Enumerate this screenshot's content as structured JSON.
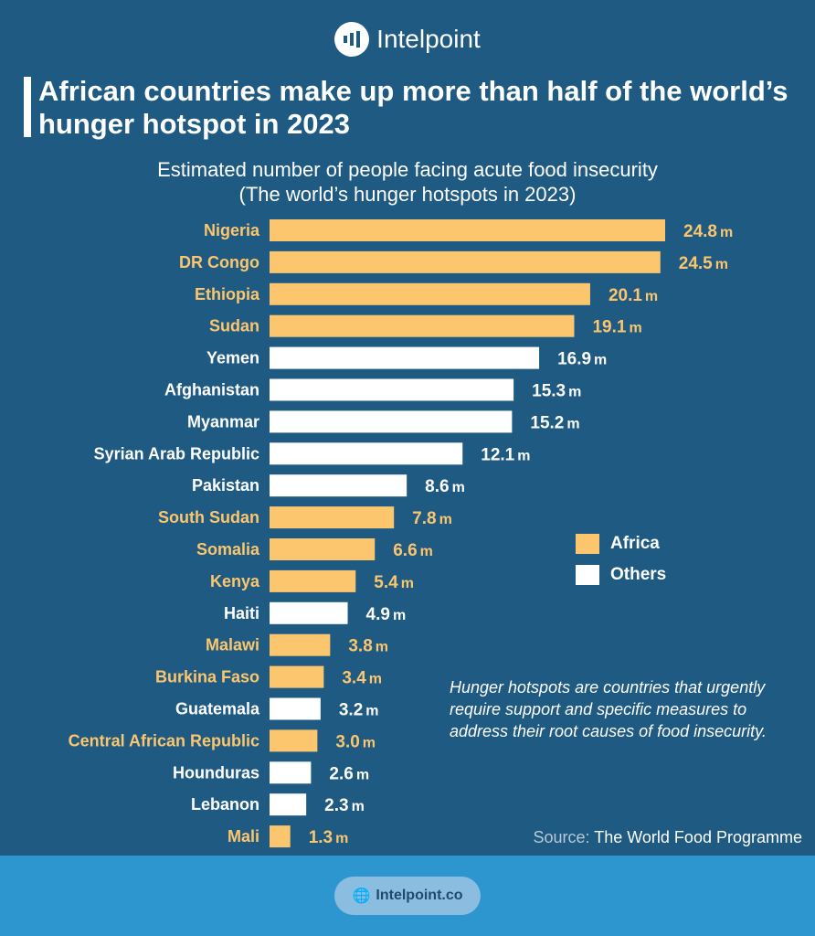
{
  "brand": {
    "name": "Intelpoint",
    "website": "Intelpoint.co"
  },
  "headline": "African countries make up more than half of the world’s hunger hotspot in 2023",
  "colors": {
    "africa": "#fbc66e",
    "others": "#ffffff",
    "background": "#1e5a82",
    "footer": "#2e96cf"
  },
  "chart_data": {
    "type": "bar",
    "orientation": "horizontal",
    "title": "Estimated number of people facing acute food insecurity",
    "subtitle": "(The world’s hunger hotspots in 2023)",
    "unit": "m",
    "categories": [
      "Nigeria",
      "DR Congo",
      "Ethiopia",
      "Sudan",
      "Yemen",
      "Afghanistan",
      "Myanmar",
      "Syrian Arab Republic",
      "Pakistan",
      "South Sudan",
      "Somalia",
      "Kenya",
      "Haiti",
      "Malawi",
      "Burkina Faso",
      "Guatemala",
      "Central African Republic",
      "Hounduras",
      "Lebanon",
      "Mali"
    ],
    "values": [
      24.8,
      24.5,
      20.1,
      19.1,
      16.9,
      15.3,
      15.2,
      12.1,
      8.6,
      7.8,
      6.6,
      5.4,
      4.9,
      3.8,
      3.4,
      3.2,
      3.0,
      2.6,
      2.3,
      1.3
    ],
    "labels": [
      "24.8",
      "24.5",
      "20.1",
      "19.1",
      "16.9",
      "15.3",
      "15.2",
      "12.1",
      "8.6",
      "7.8",
      "6.6",
      "5.4",
      "4.9",
      "3.8",
      "3.4",
      "3.2",
      "3.0",
      "2.6",
      "2.3",
      "1.3"
    ],
    "group": [
      "Africa",
      "Africa",
      "Africa",
      "Africa",
      "Others",
      "Others",
      "Others",
      "Others",
      "Others",
      "Africa",
      "Africa",
      "Africa",
      "Others",
      "Africa",
      "Africa",
      "Others",
      "Africa",
      "Others",
      "Others",
      "Africa"
    ],
    "legend": [
      "Africa",
      "Others"
    ],
    "legend_position": "right",
    "grid": false
  },
  "note": "Hunger hotspots are countries that urgently require support and specific measures to address their root causes of food insecurity.",
  "source": {
    "label": "Source:",
    "value": " The World Food Programme"
  }
}
